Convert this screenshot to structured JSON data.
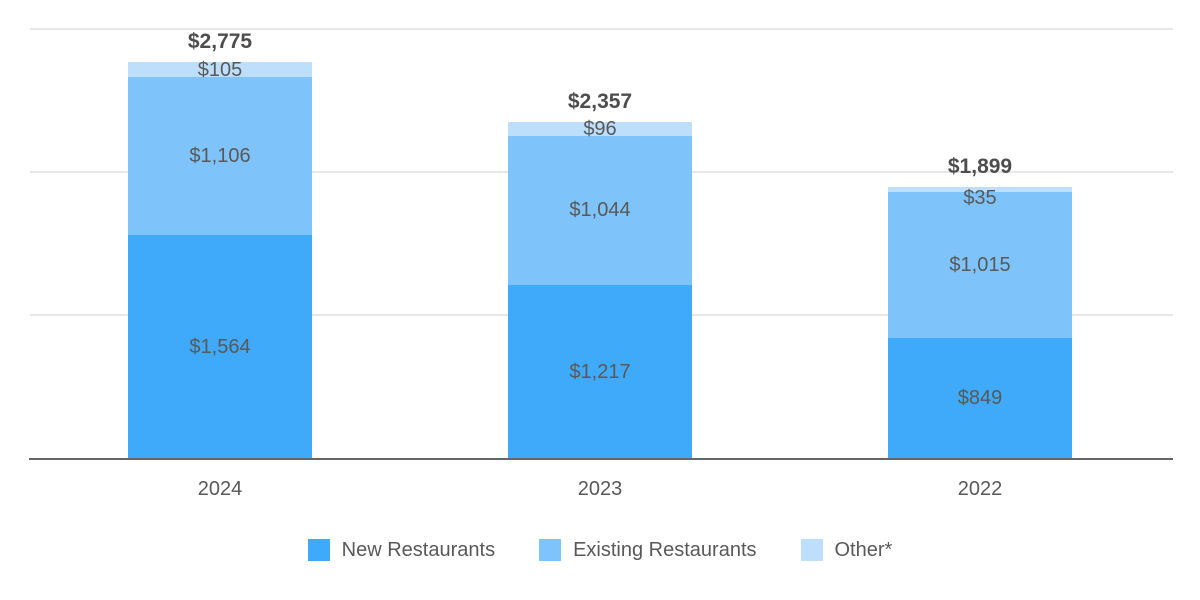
{
  "chart_data": {
    "type": "bar",
    "stacked": true,
    "title": "",
    "xlabel": "",
    "ylabel": "",
    "categories": [
      "2024",
      "2023",
      "2022"
    ],
    "series": [
      {
        "name": "New Restaurants",
        "color": "#3FA9FA",
        "values": [
          1564,
          1217,
          849
        ],
        "value_labels": [
          "$1,564",
          "$1,217",
          "$849"
        ]
      },
      {
        "name": "Existing Restaurants",
        "color": "#7EC3FA",
        "values": [
          1106,
          1044,
          1015
        ],
        "value_labels": [
          "$1,106",
          "$1,044",
          "$1,015"
        ]
      },
      {
        "name": "Other*",
        "color": "#BDDFFB",
        "values": [
          105,
          96,
          35
        ],
        "value_labels": [
          "$105",
          "$96",
          "$35"
        ]
      }
    ],
    "totals": [
      2775,
      2357,
      1899
    ],
    "total_labels": [
      "$2,775",
      "$2,357",
      "$1,899"
    ],
    "ylim": [
      0,
      3200
    ],
    "gridline_values": [
      1000,
      2000,
      3000
    ],
    "grid": true,
    "legend_position": "bottom"
  },
  "colors": {
    "background": "#ffffff",
    "gridline": "#e7e7e7",
    "axis_line": "#666666",
    "segment_label": "#595959",
    "total_label": "#4d4d4d",
    "axis_label": "#595959",
    "legend_label": "#595959"
  }
}
